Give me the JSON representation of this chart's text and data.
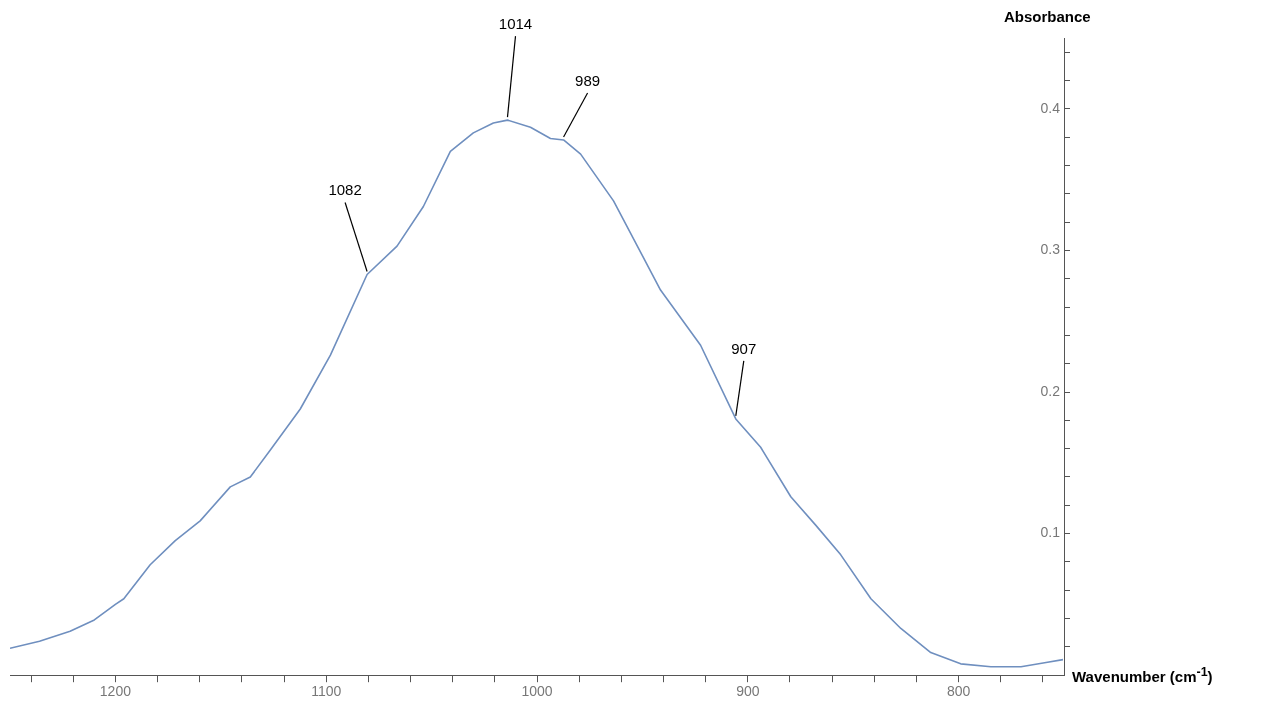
{
  "chart_data": {
    "type": "line",
    "xlabel": "Wavenumber (cm$^{-1}$)",
    "ylabel": "Absorbance",
    "xlim": [
      1250,
      750
    ],
    "xticks": [
      {
        "value": 1240,
        "label": null
      },
      {
        "value": 1220,
        "label": null
      },
      1200,
      {
        "value": 1180,
        "label": null
      },
      {
        "value": 1160,
        "label": null
      },
      {
        "value": 1140,
        "label": null
      },
      {
        "value": 1120,
        "label": null
      },
      1100,
      {
        "value": 1080,
        "label": null
      },
      {
        "value": 1060,
        "label": null
      },
      {
        "value": 1040,
        "label": null
      },
      {
        "value": 1020,
        "label": null
      },
      1000,
      {
        "value": 980,
        "label": null
      },
      {
        "value": 960,
        "label": null
      },
      {
        "value": 940,
        "label": null
      },
      {
        "value": 920,
        "label": null
      },
      900,
      {
        "value": 880,
        "label": null
      },
      {
        "value": 860,
        "label": null
      },
      {
        "value": 840,
        "label": null
      },
      {
        "value": 820,
        "label": null
      },
      800,
      {
        "value": 780,
        "label": null
      },
      {
        "value": 760,
        "label": null
      }
    ],
    "ylim": [
      0,
      0.45
    ],
    "yticks": [
      {
        "value": 0.02,
        "label": null
      },
      {
        "value": 0.04,
        "label": null
      },
      {
        "value": 0.06,
        "label": null
      },
      {
        "value": 0.08,
        "label": null
      },
      0.1,
      {
        "value": 0.12,
        "label": null
      },
      {
        "value": 0.14,
        "label": null
      },
      {
        "value": 0.16,
        "label": null
      },
      {
        "value": 0.18,
        "label": null
      },
      0.2,
      {
        "value": 0.22,
        "label": null
      },
      {
        "value": 0.24,
        "label": null
      },
      {
        "value": 0.26,
        "label": null
      },
      {
        "value": 0.28,
        "label": null
      },
      0.3,
      {
        "value": 0.32,
        "label": null
      },
      {
        "value": 0.34,
        "label": null
      },
      {
        "value": 0.36,
        "label": null
      },
      {
        "value": 0.38,
        "label": null
      },
      0.4,
      {
        "value": 0.42,
        "label": null
      },
      {
        "value": 0.44,
        "label": null
      }
    ],
    "grid": false,
    "legend": false,
    "marker": "none",
    "line_style": "solid",
    "series": [
      {
        "color": "#6f8fbf",
        "x": [
          1250,
          1236,
          1221.5,
          1210,
          1200,
          1196,
          1183.5,
          1171.6,
          1159.8,
          1145.5,
          1136,
          1126.5,
          1112.3,
          1098,
          1080.6,
          1066.4,
          1053.9,
          1041.1,
          1030.2,
          1020.7,
          1014,
          1003.1,
          993.6,
          987.4,
          979.3,
          963.7,
          941.4,
          922.4,
          905.7,
          893.9,
          879.6,
          867.8,
          855.9,
          841.6,
          827.4,
          813.2,
          799,
          784.7,
          770.4,
          758.5,
          750.5
        ],
        "values": [
          0.019,
          0.024,
          0.031,
          0.039,
          0.05,
          0.054,
          0.078,
          0.095,
          0.109,
          0.133,
          0.14,
          0.159,
          0.188,
          0.226,
          0.283,
          0.303,
          0.331,
          0.37,
          0.383,
          0.39,
          0.392,
          0.387,
          0.379,
          0.378,
          0.368,
          0.335,
          0.272,
          0.233,
          0.181,
          0.161,
          0.126,
          0.106,
          0.085,
          0.054,
          0.033,
          0.016,
          0.008,
          0.006,
          0.006,
          0.009,
          0.011
        ]
      }
    ],
    "annotations": [
      {
        "text": "1082",
        "x": 1080.6,
        "y": 0.283
      },
      {
        "text": "1014",
        "x": 1014,
        "y": 0.392
      },
      {
        "text": "989",
        "x": 987.4,
        "y": 0.378
      },
      {
        "text": "907",
        "x": 905.7,
        "y": 0.181
      }
    ]
  }
}
